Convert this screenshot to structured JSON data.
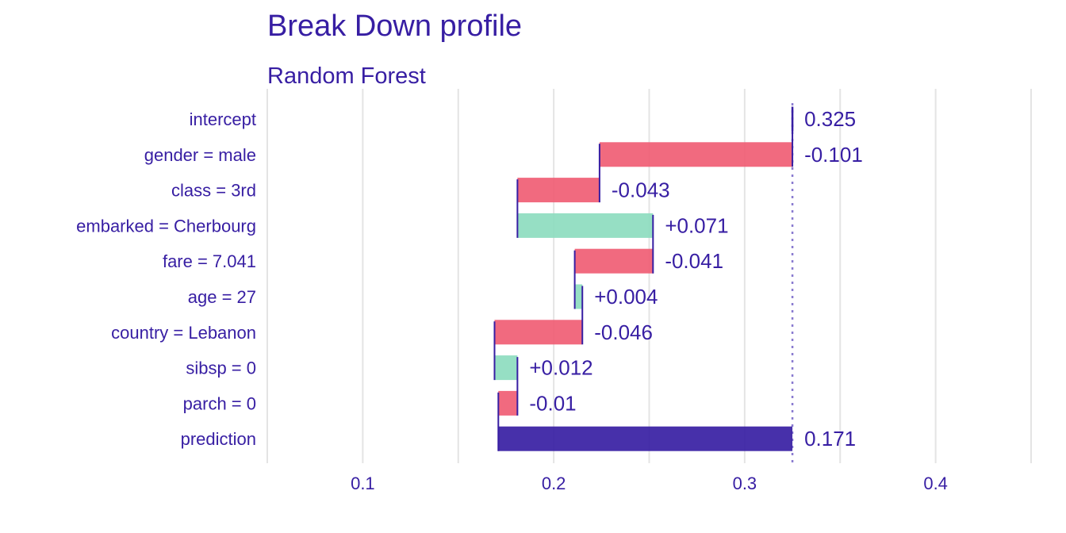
{
  "title": "Break Down profile",
  "subtitle": "Random Forest",
  "colors": {
    "text": "#371ea3",
    "positive": "#8bdcbe",
    "negative": "#f05a71",
    "prediction": "#371ea3",
    "grid": "#e4e4e4",
    "reference_line": "#8a7bd0"
  },
  "chart_data": {
    "type": "bar",
    "orientation": "horizontal",
    "variant": "waterfall",
    "title": "Break Down profile",
    "subtitle": "Random Forest",
    "xlim": [
      0.05,
      0.45
    ],
    "x_ticks": [
      0.1,
      0.2,
      0.3,
      0.4
    ],
    "x_tick_labels": [
      "0.1",
      "0.2",
      "0.3",
      "0.4"
    ],
    "grid": true,
    "reference_line": 0.325,
    "categories": [
      "intercept",
      "gender = male",
      "class = 3rd",
      "embarked = Cherbourg",
      "fare = 7.041",
      "age = 27",
      "country = Lebanon",
      "sibsp = 0",
      "parch = 0",
      "prediction"
    ],
    "bars": [
      {
        "label": "intercept",
        "start": 0.325,
        "end": 0.325,
        "contribution": 0.325,
        "value_label": "0.325",
        "kind": "intercept"
      },
      {
        "label": "gender = male",
        "start": 0.325,
        "end": 0.224,
        "contribution": -0.101,
        "value_label": "-0.101",
        "kind": "negative"
      },
      {
        "label": "class = 3rd",
        "start": 0.224,
        "end": 0.181,
        "contribution": -0.043,
        "value_label": "-0.043",
        "kind": "negative"
      },
      {
        "label": "embarked = Cherbourg",
        "start": 0.181,
        "end": 0.252,
        "contribution": 0.071,
        "value_label": "+0.071",
        "kind": "positive"
      },
      {
        "label": "fare = 7.041",
        "start": 0.252,
        "end": 0.211,
        "contribution": -0.041,
        "value_label": "-0.041",
        "kind": "negative"
      },
      {
        "label": "age = 27",
        "start": 0.211,
        "end": 0.215,
        "contribution": 0.004,
        "value_label": "+0.004",
        "kind": "positive"
      },
      {
        "label": "country = Lebanon",
        "start": 0.215,
        "end": 0.169,
        "contribution": -0.046,
        "value_label": "-0.046",
        "kind": "negative"
      },
      {
        "label": "sibsp = 0",
        "start": 0.169,
        "end": 0.181,
        "contribution": 0.012,
        "value_label": "+0.012",
        "kind": "positive"
      },
      {
        "label": "parch = 0",
        "start": 0.181,
        "end": 0.171,
        "contribution": -0.01,
        "value_label": "-0.01",
        "kind": "negative"
      },
      {
        "label": "prediction",
        "start": 0.171,
        "end": 0.325,
        "contribution": 0.171,
        "value_label": "0.171",
        "kind": "prediction"
      }
    ]
  }
}
